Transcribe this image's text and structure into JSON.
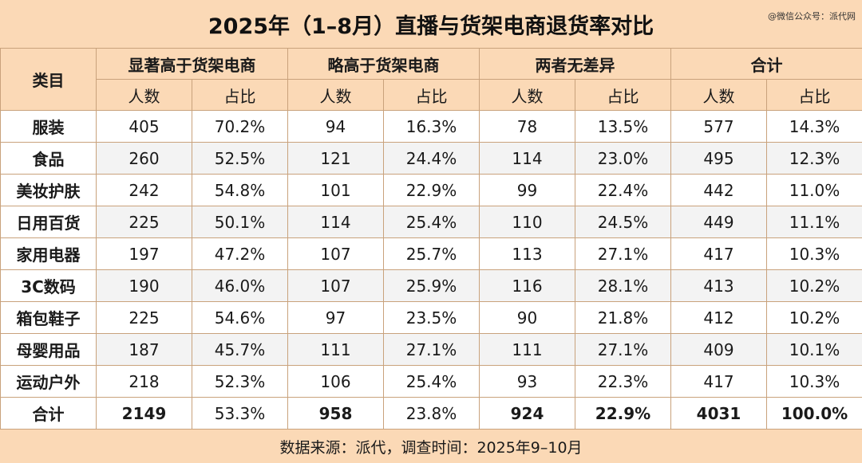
{
  "title": "2025年（1–8月）直播与货架电商退货率对比",
  "watermark": "@微信公众号：派代网",
  "header": {
    "category": "类目",
    "groups": [
      "显著高于货架电商",
      "略高于货架电商",
      "两者无差异",
      "合计"
    ],
    "sub": [
      "人数",
      "占比"
    ]
  },
  "rows": [
    {
      "cat": "服装",
      "v": [
        "405",
        "70.2%",
        "94",
        "16.3%",
        "78",
        "13.5%",
        "577",
        "14.3%"
      ]
    },
    {
      "cat": "食品",
      "v": [
        "260",
        "52.5%",
        "121",
        "24.4%",
        "114",
        "23.0%",
        "495",
        "12.3%"
      ]
    },
    {
      "cat": "美妆护肤",
      "v": [
        "242",
        "54.8%",
        "101",
        "22.9%",
        "99",
        "22.4%",
        "442",
        "11.0%"
      ]
    },
    {
      "cat": "日用百货",
      "v": [
        "225",
        "50.1%",
        "114",
        "25.4%",
        "110",
        "24.5%",
        "449",
        "11.1%"
      ]
    },
    {
      "cat": "家用电器",
      "v": [
        "197",
        "47.2%",
        "107",
        "25.7%",
        "113",
        "27.1%",
        "417",
        "10.3%"
      ]
    },
    {
      "cat": "3C数码",
      "v": [
        "190",
        "46.0%",
        "107",
        "25.9%",
        "116",
        "28.1%",
        "413",
        "10.2%"
      ]
    },
    {
      "cat": "箱包鞋子",
      "v": [
        "225",
        "54.6%",
        "97",
        "23.5%",
        "90",
        "21.8%",
        "412",
        "10.2%"
      ]
    },
    {
      "cat": "母婴用品",
      "v": [
        "187",
        "45.7%",
        "111",
        "27.1%",
        "111",
        "27.1%",
        "409",
        "10.1%"
      ]
    },
    {
      "cat": "运动户外",
      "v": [
        "218",
        "52.3%",
        "106",
        "25.4%",
        "93",
        "22.3%",
        "417",
        "10.3%"
      ]
    }
  ],
  "total": {
    "cat": "合计",
    "v": [
      "2149",
      "53.3%",
      "958",
      "23.8%",
      "924",
      "22.9%",
      "4031",
      "100.0%"
    ]
  },
  "footer": "数据来源：派代，调查时间：2025年9–10月"
}
